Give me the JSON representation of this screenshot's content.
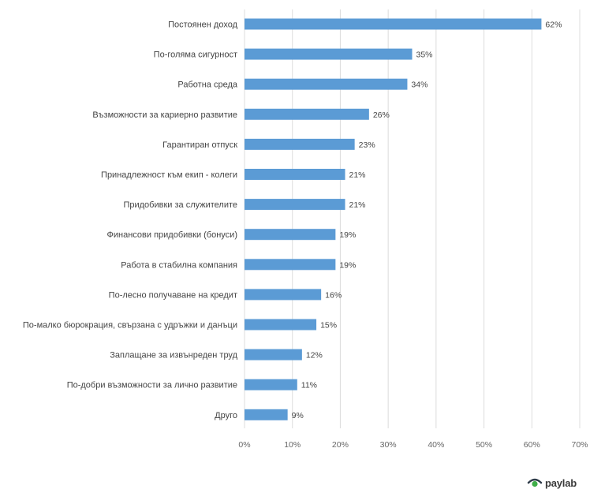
{
  "chart_data": {
    "type": "bar",
    "orientation": "horizontal",
    "categories": [
      "Постоянен доход",
      "По-голяма сигурност",
      "Работна среда",
      "Възможности за кариерно развитие",
      "Гарантиран отпуск",
      "Принадлежност към екип - колеги",
      "Придобивки за служителите",
      "Финансови придобивки (бонуси)",
      "Работа в стабилна компания",
      "По-лесно получаване на кредит",
      "По-малко бюрокрация, свързана с удръжки и данъци",
      "Заплащане за извънреден труд",
      "По-добри възможности за лично развитие",
      "Друго"
    ],
    "values": [
      62,
      35,
      34,
      26,
      23,
      21,
      21,
      19,
      19,
      16,
      15,
      12,
      11,
      9
    ],
    "value_labels": [
      "62%",
      "35%",
      "34%",
      "26%",
      "23%",
      "21%",
      "21%",
      "19%",
      "19%",
      "16%",
      "15%",
      "12%",
      "11%",
      "9%"
    ],
    "xlim": [
      0,
      70
    ],
    "x_ticks": [
      0,
      10,
      20,
      30,
      40,
      50,
      60,
      70
    ],
    "x_tick_labels": [
      "0%",
      "10%",
      "20%",
      "30%",
      "40%",
      "50%",
      "60%",
      "70%"
    ],
    "grid": true,
    "bar_color": "#5b9bd5"
  },
  "branding": {
    "logo_text": "paylab",
    "logo_color": "#3b3b3b"
  }
}
